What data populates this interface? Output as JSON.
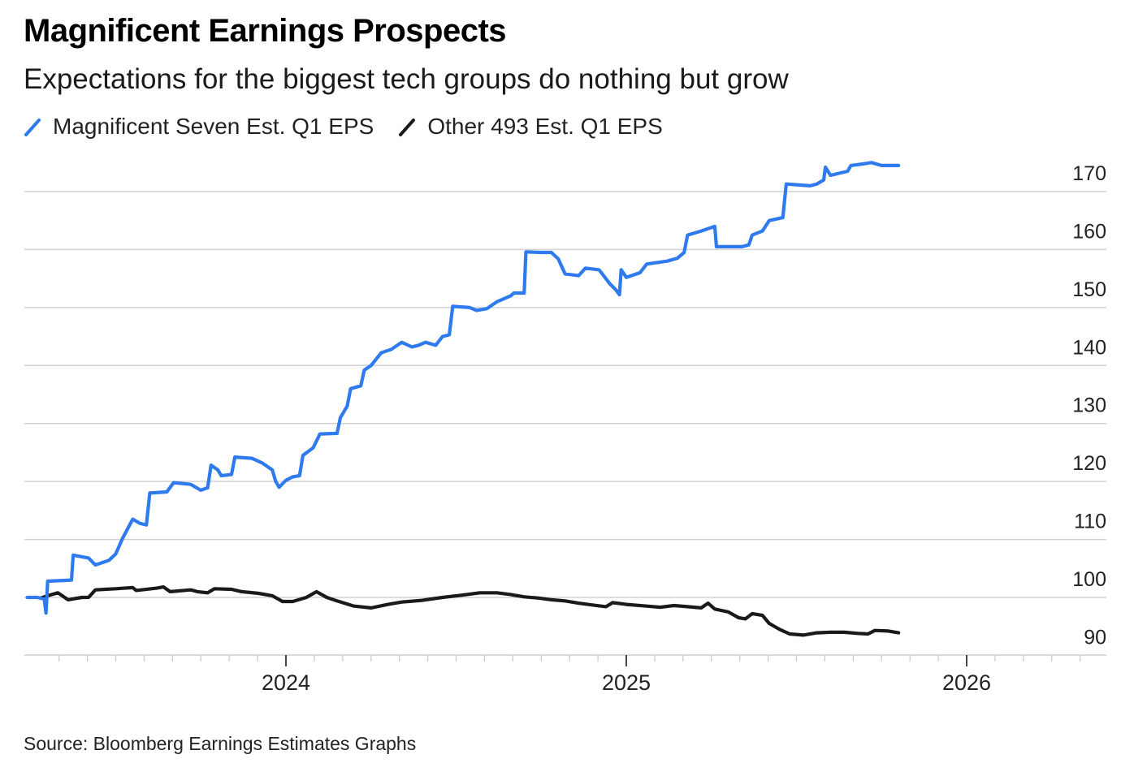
{
  "header": {
    "title": "Magnificent Earnings Prospects",
    "subtitle": "Expectations for the biggest tech groups do nothing but grow"
  },
  "legend": [
    {
      "label": "Magnificent Seven Est. Q1 EPS",
      "color": "#2f7bed",
      "icon": "slash-line-icon"
    },
    {
      "label": "Other 493 Est. Q1 EPS",
      "color": "#1a1a1a",
      "icon": "slash-line-icon"
    }
  ],
  "footer": {
    "source": "Source: Bloomberg Earnings Estimates Graphs"
  },
  "chart_data": {
    "type": "line",
    "title": "Magnificent Earnings Prospects",
    "subtitle": "Expectations for the biggest tech groups do nothing but grow",
    "xlabel": "",
    "ylabel": "",
    "x_unit": "decimal year",
    "xlim": [
      2023.22,
      2026.42
    ],
    "ylim": [
      87,
      175
    ],
    "y_ticks": [
      90,
      100,
      110,
      120,
      130,
      140,
      150,
      160,
      170
    ],
    "y_tick_labels": [
      "90",
      "100",
      "110",
      "120",
      "130",
      "140",
      "150",
      "160",
      "170"
    ],
    "y_axis_side": "right",
    "x_major_ticks": [
      2024,
      2025,
      2026
    ],
    "x_tick_labels": [
      "2024",
      "2025",
      "2026"
    ],
    "x_minor_tick_interval_months": 1,
    "grid": true,
    "legend_position": "top-left",
    "series": [
      {
        "name": "Magnificent Seven Est. Q1 EPS",
        "color": "#2f7bed",
        "points": [
          [
            2023.24,
            100.0
          ],
          [
            2023.27,
            100.0
          ],
          [
            2023.29,
            99.7
          ],
          [
            2023.295,
            97.3
          ],
          [
            2023.3,
            102.8
          ],
          [
            2023.37,
            103.0
          ],
          [
            2023.375,
            107.3
          ],
          [
            2023.42,
            106.8
          ],
          [
            2023.44,
            105.6
          ],
          [
            2023.48,
            106.4
          ],
          [
            2023.5,
            107.5
          ],
          [
            2023.52,
            110.2
          ],
          [
            2023.55,
            113.5
          ],
          [
            2023.57,
            112.8
          ],
          [
            2023.59,
            112.5
          ],
          [
            2023.6,
            118.0
          ],
          [
            2023.65,
            118.2
          ],
          [
            2023.67,
            119.8
          ],
          [
            2023.72,
            119.5
          ],
          [
            2023.75,
            118.5
          ],
          [
            2023.77,
            118.9
          ],
          [
            2023.78,
            122.8
          ],
          [
            2023.8,
            122.0
          ],
          [
            2023.81,
            121.0
          ],
          [
            2023.84,
            121.2
          ],
          [
            2023.85,
            124.2
          ],
          [
            2023.9,
            124.0
          ],
          [
            2023.93,
            123.2
          ],
          [
            2023.96,
            122.0
          ],
          [
            2023.97,
            120.0
          ],
          [
            2023.98,
            119.0
          ],
          [
            2024.0,
            120.2
          ],
          [
            2024.02,
            120.8
          ],
          [
            2024.04,
            121.0
          ],
          [
            2024.05,
            124.5
          ],
          [
            2024.08,
            125.8
          ],
          [
            2024.1,
            128.2
          ],
          [
            2024.15,
            128.3
          ],
          [
            2024.16,
            131.0
          ],
          [
            2024.18,
            133.0
          ],
          [
            2024.19,
            136.0
          ],
          [
            2024.22,
            136.5
          ],
          [
            2024.23,
            139.2
          ],
          [
            2024.25,
            140.0
          ],
          [
            2024.28,
            142.2
          ],
          [
            2024.31,
            142.8
          ],
          [
            2024.34,
            144.0
          ],
          [
            2024.37,
            143.2
          ],
          [
            2024.39,
            143.5
          ],
          [
            2024.41,
            144.0
          ],
          [
            2024.44,
            143.5
          ],
          [
            2024.46,
            145.0
          ],
          [
            2024.48,
            145.3
          ],
          [
            2024.49,
            150.2
          ],
          [
            2024.54,
            150.0
          ],
          [
            2024.56,
            149.5
          ],
          [
            2024.59,
            149.8
          ],
          [
            2024.62,
            151.0
          ],
          [
            2024.64,
            151.5
          ],
          [
            2024.66,
            152.0
          ],
          [
            2024.67,
            152.5
          ],
          [
            2024.7,
            152.5
          ],
          [
            2024.705,
            159.6
          ],
          [
            2024.75,
            159.5
          ],
          [
            2024.78,
            159.5
          ],
          [
            2024.8,
            158.4
          ],
          [
            2024.82,
            155.8
          ],
          [
            2024.86,
            155.5
          ],
          [
            2024.88,
            156.8
          ],
          [
            2024.92,
            156.5
          ],
          [
            2024.95,
            154.2
          ],
          [
            2024.97,
            153.0
          ],
          [
            2024.98,
            152.2
          ],
          [
            2024.985,
            156.5
          ],
          [
            2025.0,
            155.2
          ],
          [
            2025.04,
            156.0
          ],
          [
            2025.06,
            157.5
          ],
          [
            2025.12,
            158.0
          ],
          [
            2025.15,
            158.5
          ],
          [
            2025.17,
            159.5
          ],
          [
            2025.18,
            162.5
          ],
          [
            2025.22,
            163.2
          ],
          [
            2025.26,
            164.0
          ],
          [
            2025.265,
            160.5
          ],
          [
            2025.34,
            160.5
          ],
          [
            2025.36,
            160.8
          ],
          [
            2025.37,
            162.5
          ],
          [
            2025.4,
            163.2
          ],
          [
            2025.42,
            165.0
          ],
          [
            2025.46,
            165.5
          ],
          [
            2025.47,
            171.3
          ],
          [
            2025.54,
            171.0
          ],
          [
            2025.56,
            171.3
          ],
          [
            2025.58,
            172.0
          ],
          [
            2025.585,
            174.2
          ],
          [
            2025.6,
            172.8
          ],
          [
            2025.65,
            173.5
          ],
          [
            2025.66,
            174.5
          ],
          [
            2025.7,
            174.8
          ],
          [
            2025.72,
            175.0
          ],
          [
            2025.75,
            174.5
          ],
          [
            2025.8,
            174.5
          ]
        ]
      },
      {
        "name": "Other 493 Est. Q1 EPS",
        "color": "#1a1a1a",
        "points": [
          [
            2023.28,
            99.9
          ],
          [
            2023.3,
            100.3
          ],
          [
            2023.33,
            100.8
          ],
          [
            2023.36,
            99.6
          ],
          [
            2023.4,
            100.0
          ],
          [
            2023.42,
            100.0
          ],
          [
            2023.44,
            101.3
          ],
          [
            2023.5,
            101.5
          ],
          [
            2023.55,
            101.7
          ],
          [
            2023.56,
            101.2
          ],
          [
            2023.62,
            101.6
          ],
          [
            2023.64,
            101.8
          ],
          [
            2023.66,
            101.0
          ],
          [
            2023.72,
            101.3
          ],
          [
            2023.74,
            101.0
          ],
          [
            2023.77,
            100.8
          ],
          [
            2023.79,
            101.5
          ],
          [
            2023.84,
            101.4
          ],
          [
            2023.87,
            101.0
          ],
          [
            2023.92,
            100.7
          ],
          [
            2023.96,
            100.3
          ],
          [
            2023.99,
            99.3
          ],
          [
            2024.02,
            99.3
          ],
          [
            2024.06,
            100.0
          ],
          [
            2024.09,
            101.0
          ],
          [
            2024.12,
            100.0
          ],
          [
            2024.15,
            99.4
          ],
          [
            2024.2,
            98.5
          ],
          [
            2024.25,
            98.2
          ],
          [
            2024.3,
            98.8
          ],
          [
            2024.34,
            99.2
          ],
          [
            2024.4,
            99.5
          ],
          [
            2024.46,
            100.0
          ],
          [
            2024.52,
            100.4
          ],
          [
            2024.57,
            100.8
          ],
          [
            2024.62,
            100.8
          ],
          [
            2024.66,
            100.5
          ],
          [
            2024.7,
            100.1
          ],
          [
            2024.74,
            99.9
          ],
          [
            2024.78,
            99.6
          ],
          [
            2024.82,
            99.4
          ],
          [
            2024.86,
            99.0
          ],
          [
            2024.9,
            98.7
          ],
          [
            2024.94,
            98.4
          ],
          [
            2024.96,
            99.1
          ],
          [
            2025.0,
            98.8
          ],
          [
            2025.06,
            98.5
          ],
          [
            2025.1,
            98.3
          ],
          [
            2025.14,
            98.6
          ],
          [
            2025.18,
            98.4
          ],
          [
            2025.22,
            98.2
          ],
          [
            2025.24,
            99.0
          ],
          [
            2025.26,
            98.0
          ],
          [
            2025.3,
            97.5
          ],
          [
            2025.33,
            96.5
          ],
          [
            2025.35,
            96.3
          ],
          [
            2025.37,
            97.2
          ],
          [
            2025.4,
            96.9
          ],
          [
            2025.42,
            95.5
          ],
          [
            2025.45,
            94.5
          ],
          [
            2025.48,
            93.7
          ],
          [
            2025.52,
            93.5
          ],
          [
            2025.56,
            93.9
          ],
          [
            2025.6,
            94.0
          ],
          [
            2025.64,
            94.0
          ],
          [
            2025.68,
            93.8
          ],
          [
            2025.71,
            93.7
          ],
          [
            2025.73,
            94.3
          ],
          [
            2025.77,
            94.2
          ],
          [
            2025.8,
            93.9
          ]
        ]
      }
    ]
  }
}
